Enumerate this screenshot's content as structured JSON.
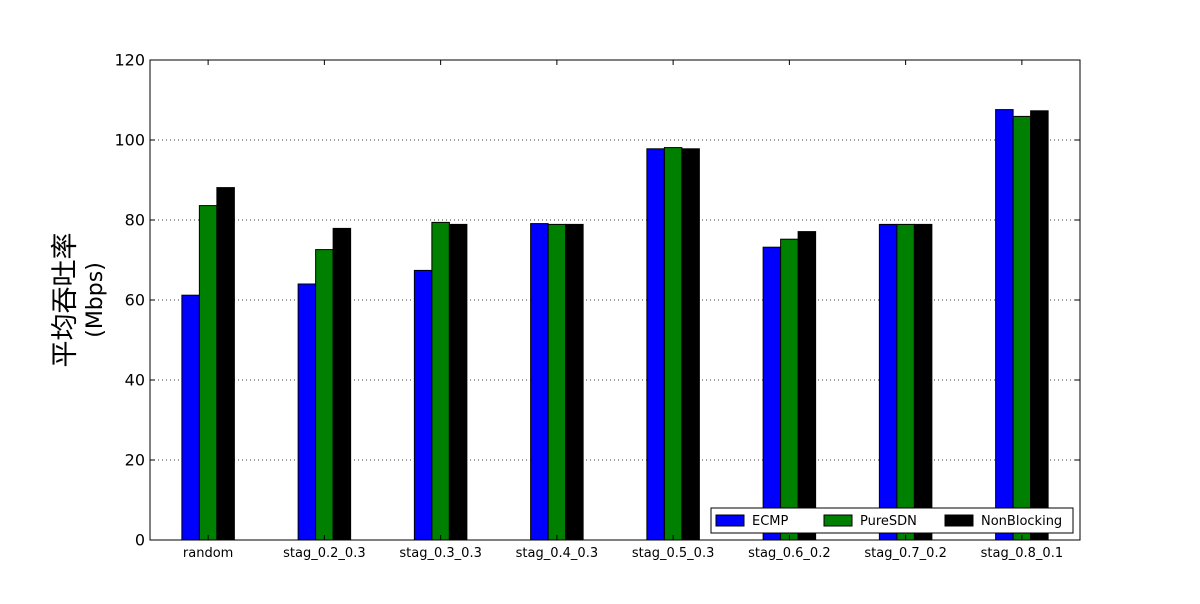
{
  "chart_data": {
    "type": "bar",
    "title": "",
    "xlabel": "",
    "ylabel_line1": "平均吞吐率",
    "ylabel_line2": "(Mbps)",
    "ylim": [
      0,
      120
    ],
    "yticks": [
      0,
      20,
      40,
      60,
      80,
      100,
      120
    ],
    "grid": "y-dotted",
    "legend_position": "lower-right",
    "categories": [
      "random",
      "stag_0.2_0.3",
      "stag_0.3_0.3",
      "stag_0.4_0.3",
      "stag_0.5_0.3",
      "stag_0.6_0.2",
      "stag_0.7_0.2",
      "stag_0.8_0.1"
    ],
    "series": [
      {
        "name": "ECMP",
        "color": "#0000ff",
        "values": [
          61.2,
          64.0,
          67.4,
          79.1,
          97.8,
          73.2,
          78.9,
          107.6
        ]
      },
      {
        "name": "PureSDN",
        "color": "#008000",
        "values": [
          83.6,
          72.6,
          79.4,
          78.9,
          98.1,
          75.2,
          78.9,
          105.9
        ]
      },
      {
        "name": "NonBlocking",
        "color": "#000000",
        "values": [
          88.1,
          77.9,
          78.9,
          78.9,
          97.8,
          77.1,
          78.9,
          107.3
        ]
      }
    ]
  }
}
